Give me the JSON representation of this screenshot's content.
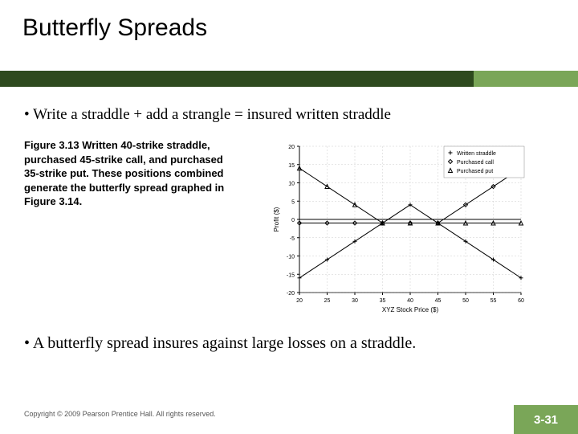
{
  "title": "Butterfly Spreads",
  "bullets": {
    "b1": "Write a straddle + add a strangle = insured written straddle",
    "b2": "A butterfly spread insures against large losses on a straddle."
  },
  "figure": {
    "label": "Figure 3.13",
    "caption_rest": " Written 40-strike straddle, purchased 45-strike call, and purchased 35-strike put. These positions combined generate the butterfly spread graphed in Figure 3.14."
  },
  "chart": {
    "type": "line",
    "xlabel": "XYZ Stock Price ($)",
    "ylabel": "Profit ($)",
    "xlim": [
      20,
      60
    ],
    "ylim": [
      -20,
      20
    ],
    "xtick_step": 5,
    "ytick_step": 5,
    "background_color": "#ffffff",
    "axis_color": "#000000",
    "grid_color": "#cccccc",
    "grid_dash": "2,2",
    "line_color": "#000000",
    "line_width": 1,
    "label_fontsize": 8,
    "tick_fontsize": 7,
    "legend": {
      "items": [
        "Written straddle",
        "Purchased call",
        "Purchased put"
      ],
      "markers": [
        "plus",
        "diamond",
        "triangle"
      ],
      "position": "top-right"
    },
    "series": {
      "written_straddle": {
        "marker": "plus",
        "xs": [
          20,
          25,
          30,
          35,
          40,
          45,
          50,
          55,
          60
        ],
        "ys": [
          -16,
          -11,
          -6,
          -1,
          4,
          -1,
          -6,
          -11,
          -16
        ]
      },
      "purchased_call": {
        "marker": "diamond",
        "xs": [
          20,
          25,
          30,
          35,
          40,
          45,
          50,
          55,
          60
        ],
        "ys": [
          -1,
          -1,
          -1,
          -1,
          -1,
          -1,
          4,
          9,
          14
        ]
      },
      "purchased_put": {
        "marker": "triangle",
        "xs": [
          20,
          25,
          30,
          35,
          40,
          45,
          50,
          55,
          60
        ],
        "ys": [
          14,
          9,
          4,
          -1,
          -1,
          -1,
          -1,
          -1,
          -1
        ]
      }
    }
  },
  "footer": {
    "copyright": "Copyright © 2009 Pearson Prentice Hall. All rights reserved.",
    "page_number": "3-31"
  },
  "colors": {
    "dark_green": "#2e4a1e",
    "light_green": "#7aa658"
  }
}
